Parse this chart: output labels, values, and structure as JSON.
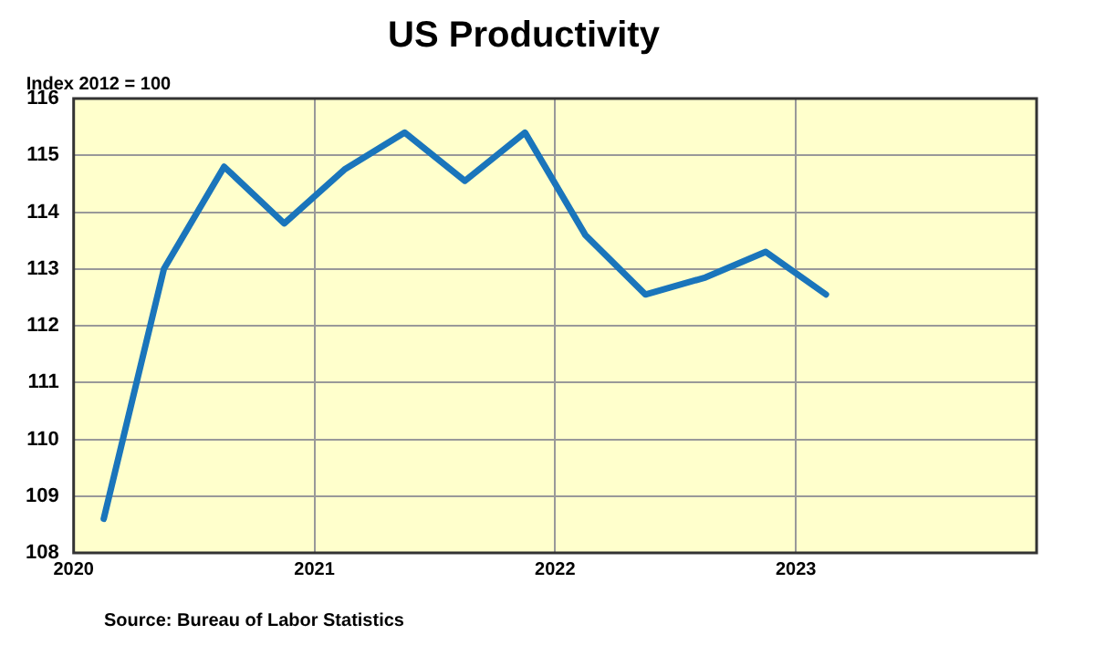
{
  "chart_data": {
    "type": "line",
    "title": "US Productivity",
    "ylabel": "Index 2012 = 100",
    "annotations": [
      "Source: Bureau of Labor Statistics"
    ],
    "x": [
      2020.125,
      2020.375,
      2020.625,
      2020.875,
      2021.125,
      2021.375,
      2021.625,
      2021.875,
      2022.125,
      2022.375,
      2022.625,
      2022.875,
      2023.125
    ],
    "series": [
      {
        "color": "#1a75bb",
        "values": [
          108.6,
          113.0,
          114.8,
          113.8,
          114.75,
          115.4,
          114.55,
          115.4,
          113.6,
          112.55,
          112.85,
          113.3,
          112.55
        ]
      }
    ],
    "xlim": [
      2020,
      2024
    ],
    "xticks": [
      2020,
      2021,
      2022,
      2023
    ],
    "ylim": [
      108,
      116
    ],
    "yticks": [
      108,
      109,
      110,
      111,
      112,
      113,
      114,
      115,
      116
    ],
    "grid": true,
    "legend": false,
    "marker": "none",
    "line_style": "solid"
  }
}
